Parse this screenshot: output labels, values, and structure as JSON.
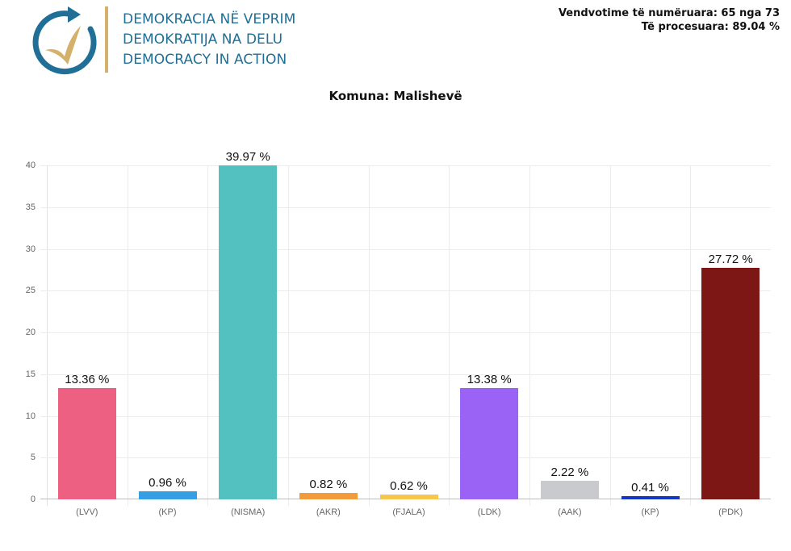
{
  "header": {
    "org_lines": [
      "DEMOKRACIA NË VEPRIM",
      "DEMOKRATIJA NA DELU",
      "DEMOCRACY IN ACTION"
    ],
    "logo_icon": "circular-arrow-checkmark-icon",
    "stats_line1": "Vendvotime të numëruara: 65 nga 73",
    "stats_line2": "Të procesuara: 89.04 %"
  },
  "colors": {
    "logo_blue": "#1f6f96",
    "logo_gold": "#d4b06a"
  },
  "chart_data": {
    "type": "bar",
    "title": "Komuna: Malishevë",
    "xlabel": "",
    "ylabel": "",
    "ylim": [
      0,
      40
    ],
    "yticks": [
      0,
      5,
      10,
      15,
      20,
      25,
      30,
      35,
      40
    ],
    "grid": true,
    "legend": "none",
    "categories": [
      "(LVV)",
      "(KP)",
      "(NISMA)",
      "(AKR)",
      "(FJALA)",
      "(LDK)",
      "(AAK)",
      "(KP)",
      "(PDK)"
    ],
    "values": [
      13.36,
      0.96,
      39.97,
      0.82,
      0.62,
      13.38,
      2.22,
      0.41,
      27.72
    ],
    "data_labels": [
      "13.36 %",
      "0.96 %",
      "39.97 %",
      "0.82 %",
      "0.62 %",
      "13.38 %",
      "2.22 %",
      "0.41 %",
      "27.72 %"
    ],
    "bar_colors": [
      "#ed6081",
      "#369fe4",
      "#52c1bf",
      "#f29b3a",
      "#f7c64e",
      "#9a63f5",
      "#c8cacd",
      "#1237c4",
      "#7d1716"
    ]
  }
}
